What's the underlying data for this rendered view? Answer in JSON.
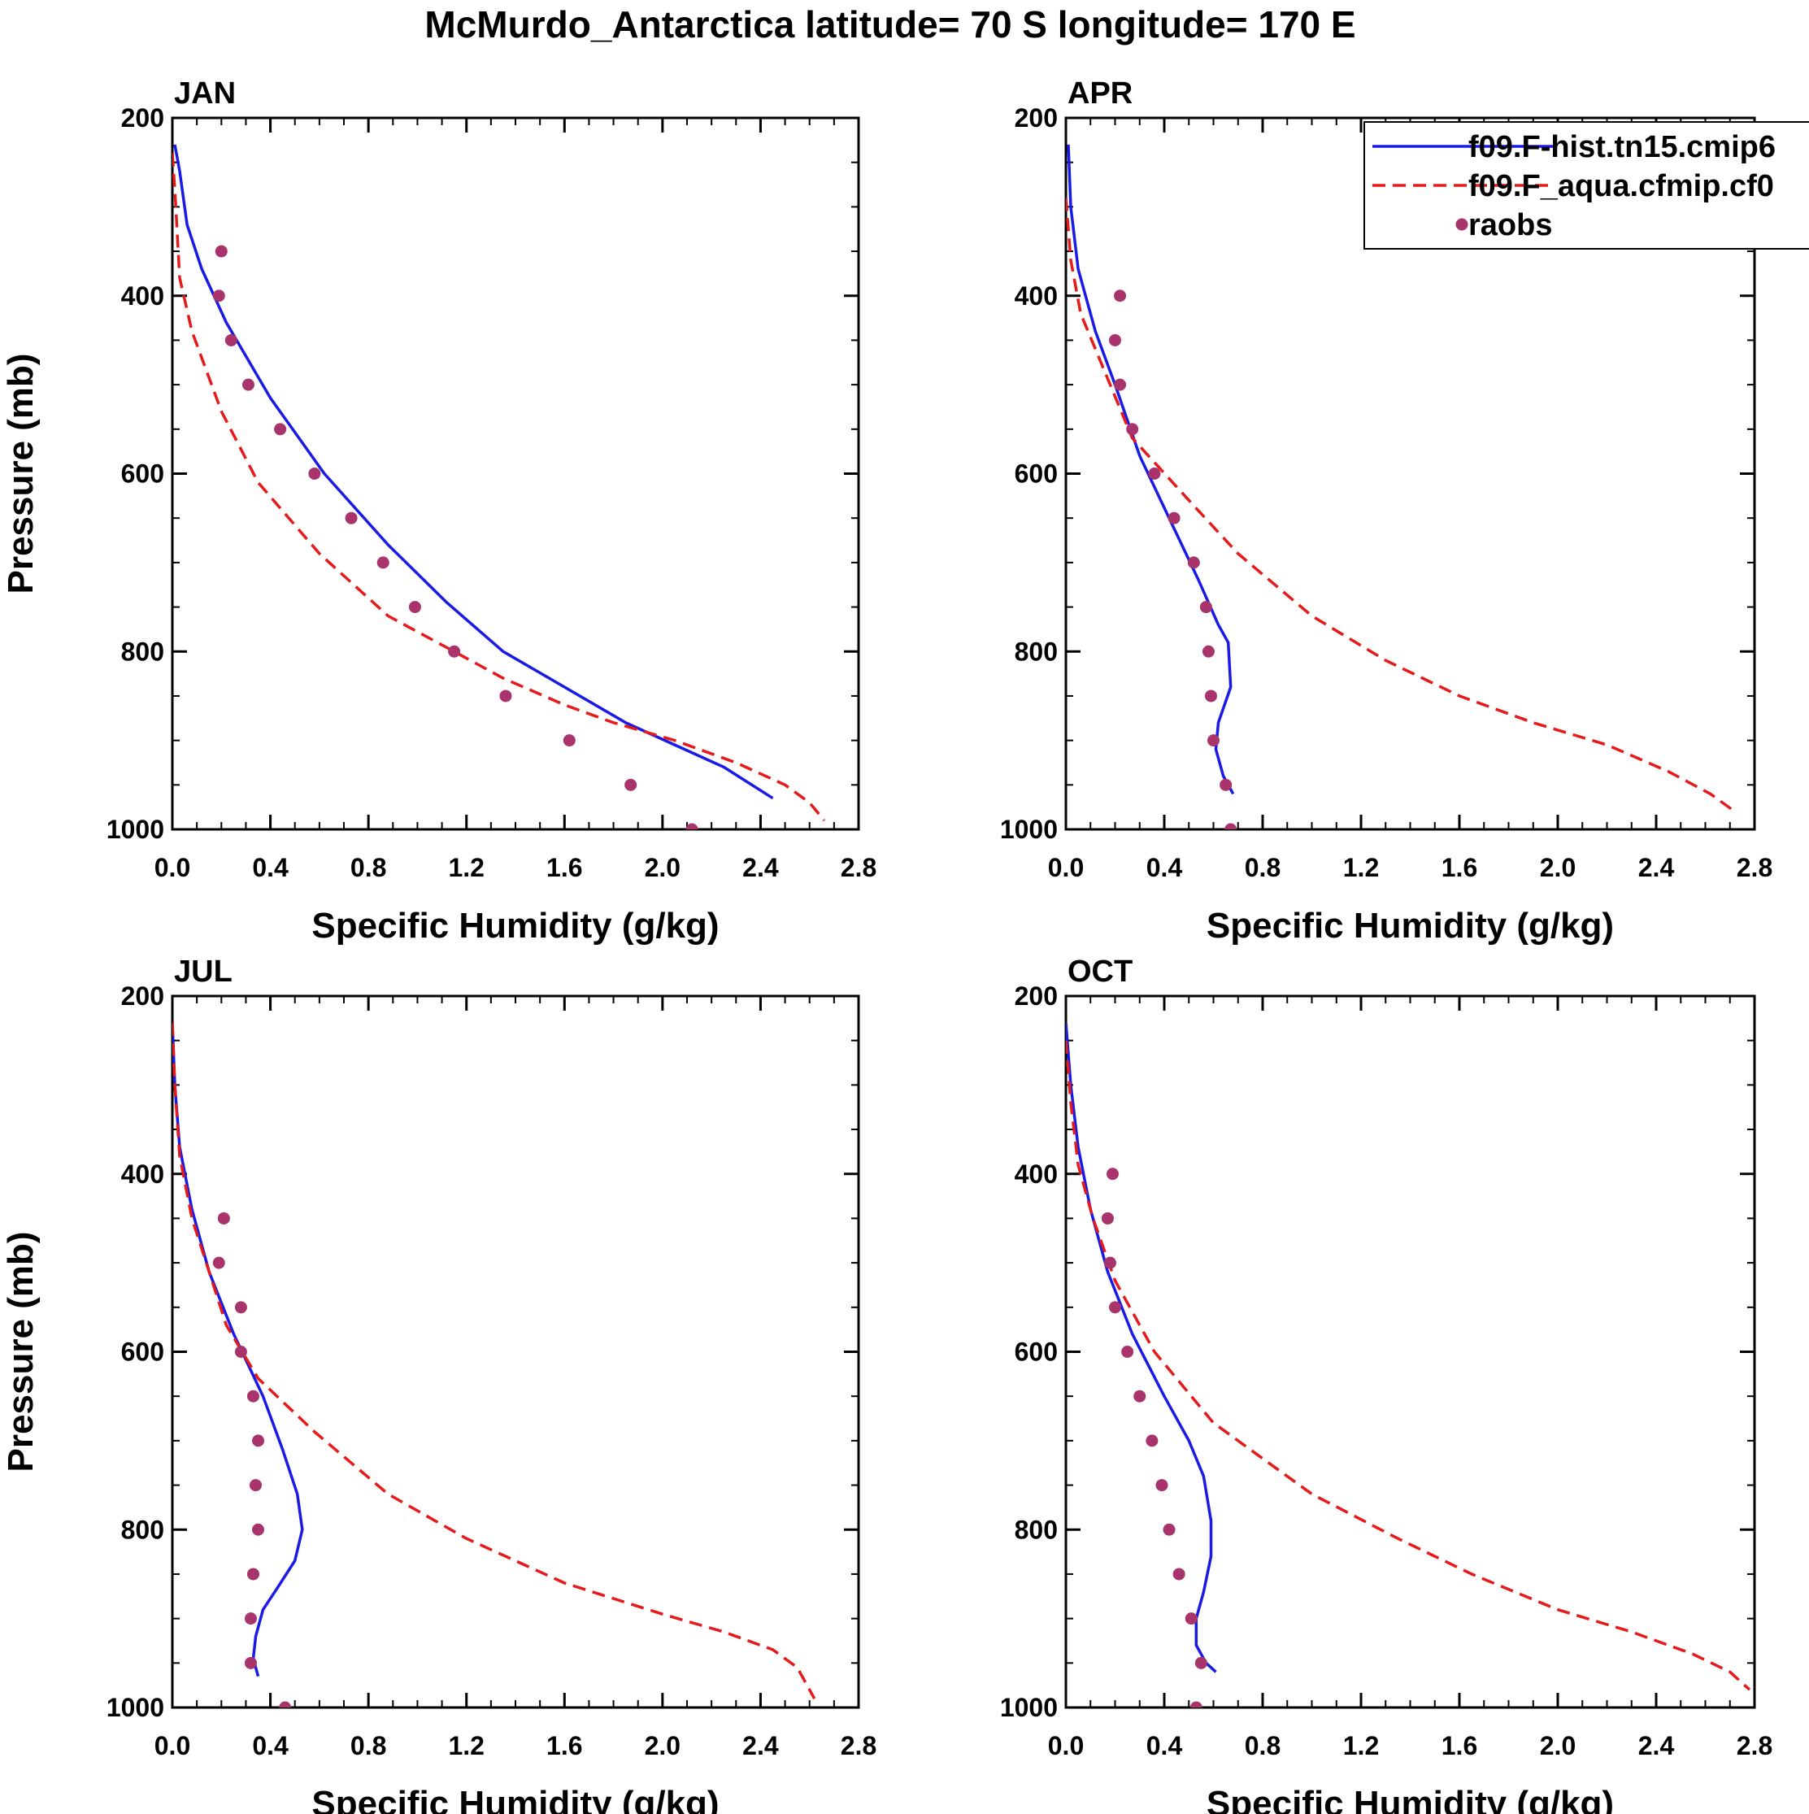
{
  "title": "McMurdo_Antarctica  latitude= 70 S longitude= 170 E",
  "colors": {
    "model1": "#1a1ae6",
    "model2": "#e61a1a",
    "obs": "#a8346b",
    "axis": "#000000"
  },
  "legend": [
    {
      "label": "f09.F-hist.tn15.cmip6",
      "style": "solid-line",
      "color": "#1a1ae6"
    },
    {
      "label": "f09.F_aqua.cfmip.cf0",
      "style": "dashed-line",
      "color": "#e61a1a"
    },
    {
      "label": "raobs",
      "style": "marker",
      "color": "#a8346b"
    }
  ],
  "chart_data": [
    {
      "type": "line",
      "panel": "JAN",
      "xlabel": "Specific Humidity (g/kg)",
      "ylabel": "Pressure (mb)",
      "xlim": [
        0.0,
        2.8
      ],
      "ylim": [
        200,
        1000
      ],
      "y_inverted": true,
      "xticks": [
        "0.0",
        "0.4",
        "0.8",
        "1.2",
        "1.6",
        "2.0",
        "2.4",
        "2.8"
      ],
      "yticks": [
        "200",
        "400",
        "600",
        "800",
        "1000"
      ],
      "series": [
        {
          "name": "f09.F-hist.tn15.cmip6",
          "style": "solid",
          "points": [
            [
              0.01,
              230
            ],
            [
              0.03,
              260
            ],
            [
              0.06,
              320
            ],
            [
              0.12,
              370
            ],
            [
              0.22,
              430
            ],
            [
              0.4,
              515
            ],
            [
              0.62,
              600
            ],
            [
              0.88,
              680
            ],
            [
              1.12,
              745
            ],
            [
              1.35,
              800
            ],
            [
              1.6,
              840
            ],
            [
              1.85,
              880
            ],
            [
              2.05,
              905
            ],
            [
              2.25,
              930
            ],
            [
              2.45,
              965
            ]
          ]
        },
        {
          "name": "f09.F_aqua.cfmip.cf0",
          "style": "dashed",
          "points": [
            [
              0.0,
              240
            ],
            [
              0.01,
              280
            ],
            [
              0.03,
              380
            ],
            [
              0.08,
              440
            ],
            [
              0.2,
              530
            ],
            [
              0.35,
              610
            ],
            [
              0.6,
              690
            ],
            [
              0.88,
              760
            ],
            [
              1.15,
              800
            ],
            [
              1.35,
              830
            ],
            [
              1.6,
              860
            ],
            [
              1.8,
              880
            ],
            [
              2.05,
              900
            ],
            [
              2.3,
              925
            ],
            [
              2.5,
              950
            ],
            [
              2.6,
              970
            ],
            [
              2.66,
              990
            ]
          ]
        },
        {
          "name": "raobs",
          "style": "marker",
          "points": [
            [
              0.2,
              350
            ],
            [
              0.19,
              400
            ],
            [
              0.24,
              450
            ],
            [
              0.31,
              500
            ],
            [
              0.44,
              550
            ],
            [
              0.58,
              600
            ],
            [
              0.73,
              650
            ],
            [
              0.86,
              700
            ],
            [
              0.99,
              750
            ],
            [
              1.15,
              800
            ],
            [
              1.36,
              850
            ],
            [
              1.62,
              900
            ],
            [
              1.87,
              950
            ],
            [
              2.12,
              1000
            ]
          ]
        }
      ]
    },
    {
      "type": "line",
      "panel": "APR",
      "xlabel": "Specific Humidity (g/kg)",
      "ylabel": "",
      "xlim": [
        0.0,
        2.8
      ],
      "ylim": [
        200,
        1000
      ],
      "y_inverted": true,
      "xticks": [
        "0.0",
        "0.4",
        "0.8",
        "1.2",
        "1.6",
        "2.0",
        "2.4",
        "2.8"
      ],
      "yticks": [
        "200",
        "400",
        "600",
        "800",
        "1000"
      ],
      "series": [
        {
          "name": "f09.F-hist.tn15.cmip6",
          "style": "solid",
          "points": [
            [
              0.01,
              230
            ],
            [
              0.02,
              300
            ],
            [
              0.05,
              370
            ],
            [
              0.12,
              440
            ],
            [
              0.2,
              500
            ],
            [
              0.3,
              580
            ],
            [
              0.42,
              650
            ],
            [
              0.54,
              720
            ],
            [
              0.62,
              770
            ],
            [
              0.66,
              790
            ],
            [
              0.67,
              840
            ],
            [
              0.62,
              880
            ],
            [
              0.61,
              910
            ],
            [
              0.64,
              940
            ],
            [
              0.68,
              960
            ]
          ]
        },
        {
          "name": "f09.F_aqua.cfmip.cf0",
          "style": "dashed",
          "points": [
            [
              0.0,
              290
            ],
            [
              0.02,
              360
            ],
            [
              0.06,
              420
            ],
            [
              0.15,
              480
            ],
            [
              0.27,
              560
            ],
            [
              0.5,
              630
            ],
            [
              0.7,
              690
            ],
            [
              1.0,
              760
            ],
            [
              1.3,
              810
            ],
            [
              1.6,
              850
            ],
            [
              1.9,
              880
            ],
            [
              2.2,
              905
            ],
            [
              2.45,
              935
            ],
            [
              2.62,
              960
            ],
            [
              2.72,
              980
            ]
          ]
        },
        {
          "name": "raobs",
          "style": "marker",
          "points": [
            [
              0.22,
              400
            ],
            [
              0.2,
              450
            ],
            [
              0.22,
              500
            ],
            [
              0.27,
              550
            ],
            [
              0.36,
              600
            ],
            [
              0.44,
              650
            ],
            [
              0.52,
              700
            ],
            [
              0.57,
              750
            ],
            [
              0.58,
              800
            ],
            [
              0.59,
              850
            ],
            [
              0.6,
              900
            ],
            [
              0.65,
              950
            ],
            [
              0.67,
              1000
            ]
          ]
        }
      ]
    },
    {
      "type": "line",
      "panel": "JUL",
      "xlabel": "Specific Humidity (g/kg)",
      "ylabel": "Pressure (mb)",
      "xlim": [
        0.0,
        2.8
      ],
      "ylim": [
        200,
        1000
      ],
      "y_inverted": true,
      "xticks": [
        "0.0",
        "0.4",
        "0.8",
        "1.2",
        "1.6",
        "2.0",
        "2.4",
        "2.8"
      ],
      "yticks": [
        "200",
        "400",
        "600",
        "800",
        "1000"
      ],
      "series": [
        {
          "name": "f09.F-hist.tn15.cmip6",
          "style": "solid",
          "points": [
            [
              0.0,
              230
            ],
            [
              0.01,
              300
            ],
            [
              0.03,
              370
            ],
            [
              0.08,
              440
            ],
            [
              0.15,
              510
            ],
            [
              0.25,
              580
            ],
            [
              0.37,
              650
            ],
            [
              0.45,
              710
            ],
            [
              0.51,
              760
            ],
            [
              0.53,
              800
            ],
            [
              0.5,
              835
            ],
            [
              0.43,
              865
            ],
            [
              0.37,
              890
            ],
            [
              0.34,
              920
            ],
            [
              0.33,
              945
            ],
            [
              0.35,
              965
            ]
          ]
        },
        {
          "name": "f09.F_aqua.cfmip.cf0",
          "style": "dashed",
          "points": [
            [
              0.0,
              230
            ],
            [
              0.01,
              300
            ],
            [
              0.03,
              380
            ],
            [
              0.08,
              450
            ],
            [
              0.15,
              510
            ],
            [
              0.22,
              570
            ],
            [
              0.35,
              630
            ],
            [
              0.58,
              690
            ],
            [
              0.88,
              760
            ],
            [
              1.2,
              810
            ],
            [
              1.6,
              860
            ],
            [
              2.0,
              895
            ],
            [
              2.25,
              915
            ],
            [
              2.45,
              935
            ],
            [
              2.55,
              955
            ],
            [
              2.62,
              990
            ]
          ]
        },
        {
          "name": "raobs",
          "style": "marker",
          "points": [
            [
              0.21,
              450
            ],
            [
              0.19,
              500
            ],
            [
              0.28,
              550
            ],
            [
              0.28,
              600
            ],
            [
              0.33,
              650
            ],
            [
              0.35,
              700
            ],
            [
              0.34,
              750
            ],
            [
              0.35,
              800
            ],
            [
              0.33,
              850
            ],
            [
              0.32,
              900
            ],
            [
              0.32,
              950
            ],
            [
              0.46,
              1000
            ]
          ]
        }
      ]
    },
    {
      "type": "line",
      "panel": "OCT",
      "xlabel": "Specific Humidity (g/kg)",
      "ylabel": "",
      "xlim": [
        0.0,
        2.8
      ],
      "ylim": [
        200,
        1000
      ],
      "y_inverted": true,
      "xticks": [
        "0.0",
        "0.4",
        "0.8",
        "1.2",
        "1.6",
        "2.0",
        "2.4",
        "2.8"
      ],
      "yticks": [
        "200",
        "400",
        "600",
        "800",
        "1000"
      ],
      "series": [
        {
          "name": "f09.F-hist.tn15.cmip6",
          "style": "solid",
          "points": [
            [
              0.0,
              230
            ],
            [
              0.02,
              300
            ],
            [
              0.05,
              370
            ],
            [
              0.1,
              440
            ],
            [
              0.17,
              510
            ],
            [
              0.27,
              580
            ],
            [
              0.4,
              650
            ],
            [
              0.5,
              700
            ],
            [
              0.56,
              740
            ],
            [
              0.59,
              790
            ],
            [
              0.59,
              830
            ],
            [
              0.56,
              870
            ],
            [
              0.53,
              900
            ],
            [
              0.53,
              930
            ],
            [
              0.57,
              950
            ],
            [
              0.61,
              960
            ]
          ]
        },
        {
          "name": "f09.F_aqua.cfmip.cf0",
          "style": "dashed",
          "points": [
            [
              0.0,
              250
            ],
            [
              0.02,
              320
            ],
            [
              0.05,
              390
            ],
            [
              0.11,
              450
            ],
            [
              0.2,
              520
            ],
            [
              0.36,
              600
            ],
            [
              0.6,
              680
            ],
            [
              1.0,
              760
            ],
            [
              1.35,
              810
            ],
            [
              1.65,
              850
            ],
            [
              2.0,
              890
            ],
            [
              2.3,
              915
            ],
            [
              2.55,
              940
            ],
            [
              2.7,
              960
            ],
            [
              2.78,
              980
            ]
          ]
        },
        {
          "name": "raobs",
          "style": "marker",
          "points": [
            [
              0.19,
              400
            ],
            [
              0.17,
              450
            ],
            [
              0.18,
              500
            ],
            [
              0.2,
              550
            ],
            [
              0.25,
              600
            ],
            [
              0.3,
              650
            ],
            [
              0.35,
              700
            ],
            [
              0.39,
              750
            ],
            [
              0.42,
              800
            ],
            [
              0.46,
              850
            ],
            [
              0.51,
              900
            ],
            [
              0.55,
              950
            ],
            [
              0.53,
              1000
            ]
          ]
        }
      ]
    }
  ]
}
